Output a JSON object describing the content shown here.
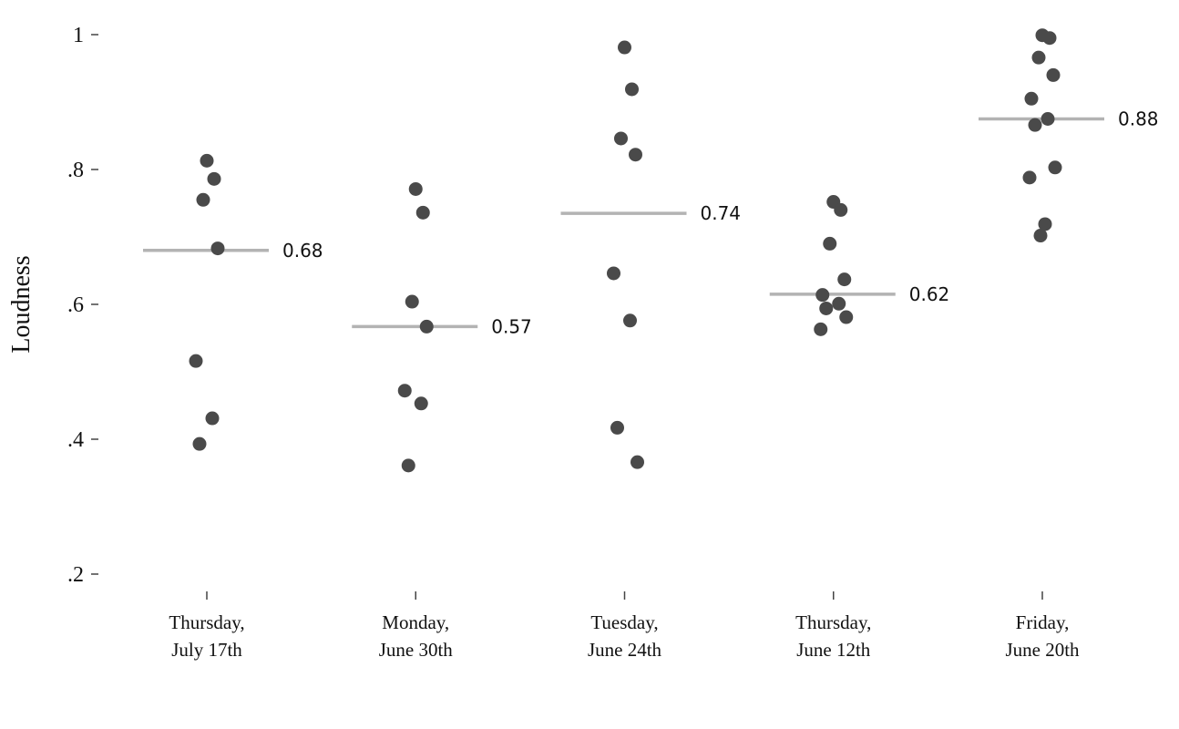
{
  "chart_data": {
    "type": "scatter",
    "ylabel": "Loudness",
    "xlabel": "",
    "ylim": [
      0.2,
      1.0
    ],
    "yticks": [
      {
        "value": 0.2,
        "label": ".2"
      },
      {
        "value": 0.4,
        "label": ".4"
      },
      {
        "value": 0.6,
        "label": ".6"
      },
      {
        "value": 0.8,
        "label": ".8"
      },
      {
        "value": 1.0,
        "label": "1"
      }
    ],
    "grid": false,
    "colors": {
      "points": "#4a4a4a",
      "mean_line": "#b3b3b3",
      "text": "#111111"
    },
    "categories": [
      {
        "line1": "Thursday,",
        "line2": "July 17th",
        "mean": 0.68,
        "mean_label": "0.68",
        "points": [
          0.813,
          0.786,
          0.755,
          0.683,
          0.516,
          0.431,
          0.393
        ]
      },
      {
        "line1": "Monday,",
        "line2": "June 30th",
        "mean": 0.567,
        "mean_label": "0.57",
        "points": [
          0.771,
          0.736,
          0.604,
          0.567,
          0.472,
          0.453,
          0.361
        ]
      },
      {
        "line1": "Tuesday,",
        "line2": "June 24th",
        "mean": 0.735,
        "mean_label": "0.74",
        "points": [
          0.981,
          0.919,
          0.846,
          0.822,
          0.646,
          0.576,
          0.417,
          0.366
        ]
      },
      {
        "line1": "Thursday,",
        "line2": "June 12th",
        "mean": 0.615,
        "mean_label": "0.62",
        "points": [
          0.752,
          0.74,
          0.69,
          0.637,
          0.614,
          0.601,
          0.594,
          0.581,
          0.563
        ]
      },
      {
        "line1": "Friday,",
        "line2": "June 20th",
        "mean": 0.875,
        "mean_label": "0.88",
        "points": [
          0.999,
          0.995,
          0.966,
          0.94,
          0.905,
          0.875,
          0.866,
          0.803,
          0.788,
          0.719,
          0.702
        ]
      }
    ]
  }
}
